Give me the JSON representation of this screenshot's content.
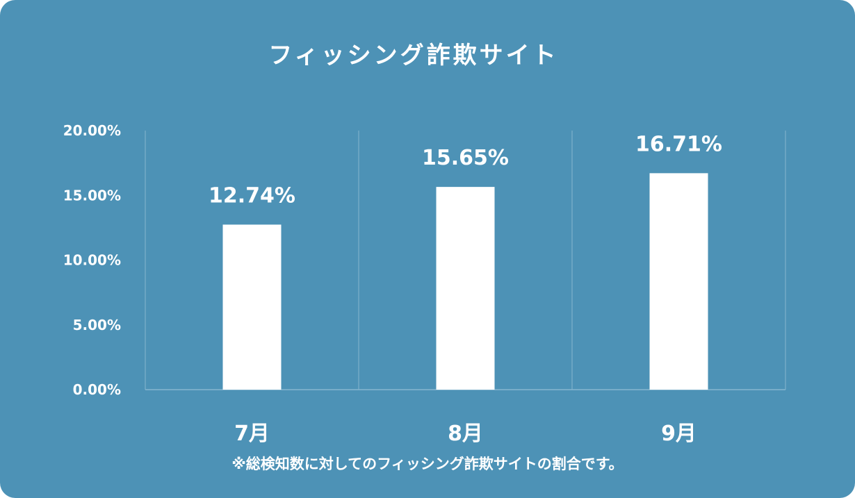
{
  "chart_data": {
    "type": "bar",
    "title": "フィッシング詐欺サイト",
    "categories": [
      "7月",
      "8月",
      "9月"
    ],
    "values": [
      12.74,
      15.65,
      16.71
    ],
    "value_labels": [
      "12.74%",
      "15.65%",
      "16.71%"
    ],
    "yticks": [
      "0.00%",
      "5.00%",
      "10.00%",
      "15.00%",
      "20.00%"
    ],
    "ylim": [
      0,
      20
    ],
    "grid": "vertical-separators",
    "legend": "none",
    "note": "※総検知数に対してのフィッシング詐欺サイトの割合です。"
  },
  "colors": {
    "background": "#4d92b6",
    "bar": "#ffffff",
    "text": "#ffffff",
    "grid": "#86b6cf"
  }
}
